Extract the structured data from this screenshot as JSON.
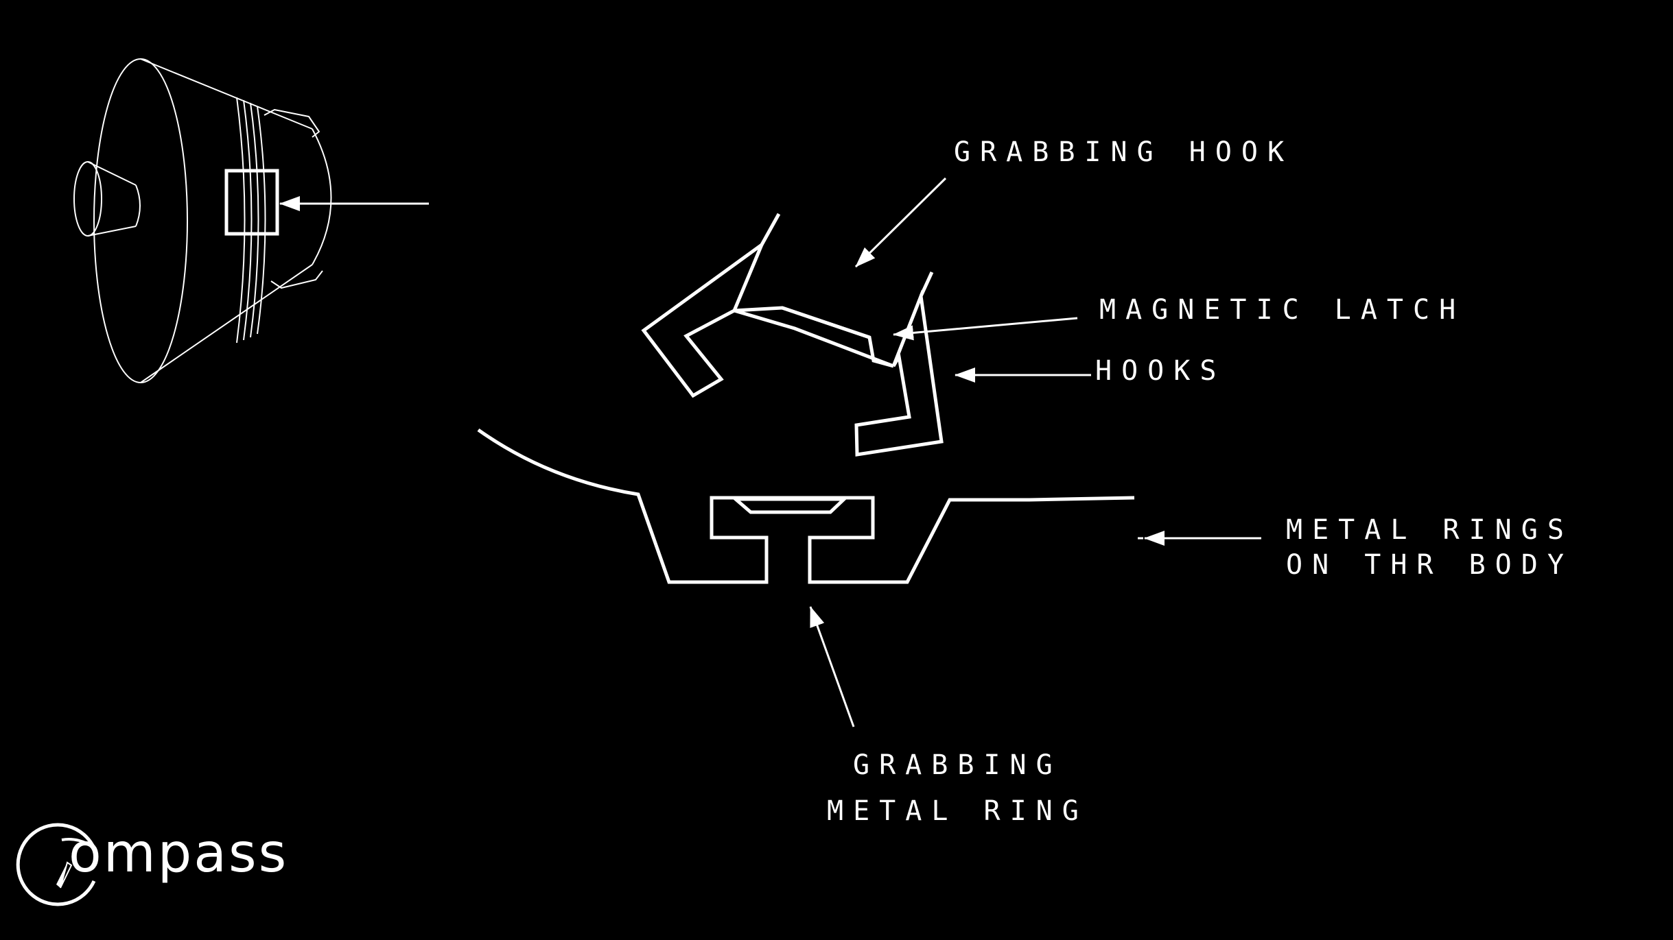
{
  "colors": {
    "background": "#000000",
    "foreground": "#ffffff"
  },
  "labels": {
    "grabbing_hook": "GRABBING HOOK",
    "magnetic_latch": "MAGNETIC LATCH",
    "hooks": "HOOKS",
    "metal_rings_line1": "METAL RINGS",
    "metal_rings_line2": "ON THR BODY",
    "grabbing_metal_ring_line1": "GRABBING",
    "grabbing_metal_ring_line2": "METAL RING"
  },
  "logo": {
    "text": "ompass",
    "icon": "compass-c-icon"
  }
}
